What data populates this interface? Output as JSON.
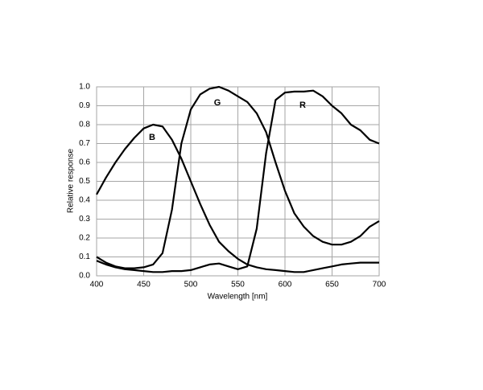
{
  "chart_data": {
    "type": "line",
    "x_label": "Wavelength [nm]",
    "y_label": "Relative response",
    "x": [
      400,
      410,
      420,
      430,
      440,
      450,
      460,
      470,
      480,
      490,
      500,
      510,
      520,
      530,
      540,
      550,
      560,
      570,
      580,
      590,
      600,
      610,
      620,
      630,
      640,
      650,
      660,
      670,
      680,
      690,
      700
    ],
    "series": [
      {
        "name": "B",
        "color": "#000000",
        "values": [
          0.43,
          0.52,
          0.6,
          0.67,
          0.73,
          0.78,
          0.8,
          0.79,
          0.72,
          0.62,
          0.5,
          0.38,
          0.27,
          0.18,
          0.13,
          0.09,
          0.06,
          0.045,
          0.035,
          0.03,
          0.025,
          0.02,
          0.02,
          0.03,
          0.04,
          0.05,
          0.06,
          0.065,
          0.07,
          0.07,
          0.07
        ]
      },
      {
        "name": "G",
        "color": "#000000",
        "values": [
          0.1,
          0.07,
          0.05,
          0.04,
          0.04,
          0.045,
          0.06,
          0.12,
          0.35,
          0.7,
          0.88,
          0.96,
          0.99,
          1.0,
          0.98,
          0.95,
          0.92,
          0.86,
          0.76,
          0.6,
          0.45,
          0.33,
          0.26,
          0.21,
          0.18,
          0.165,
          0.165,
          0.18,
          0.21,
          0.26,
          0.29
        ]
      },
      {
        "name": "R",
        "color": "#000000",
        "values": [
          0.08,
          0.06,
          0.045,
          0.035,
          0.03,
          0.025,
          0.02,
          0.02,
          0.025,
          0.025,
          0.03,
          0.045,
          0.06,
          0.065,
          0.05,
          0.035,
          0.05,
          0.25,
          0.65,
          0.93,
          0.97,
          0.975,
          0.975,
          0.98,
          0.95,
          0.9,
          0.86,
          0.8,
          0.77,
          0.72,
          0.7
        ]
      }
    ],
    "xlim": [
      400,
      700
    ],
    "xticks": [
      400,
      450,
      500,
      550,
      600,
      650,
      700
    ],
    "ylim": [
      0,
      1
    ],
    "yticks": [
      {
        "value": 0,
        "label": "0.0"
      },
      0.1,
      0.2,
      0.3,
      0.4,
      0.5,
      0.6,
      0.7,
      0.8,
      0.9,
      {
        "value": 1,
        "label": "1.0"
      }
    ],
    "grid": true
  }
}
